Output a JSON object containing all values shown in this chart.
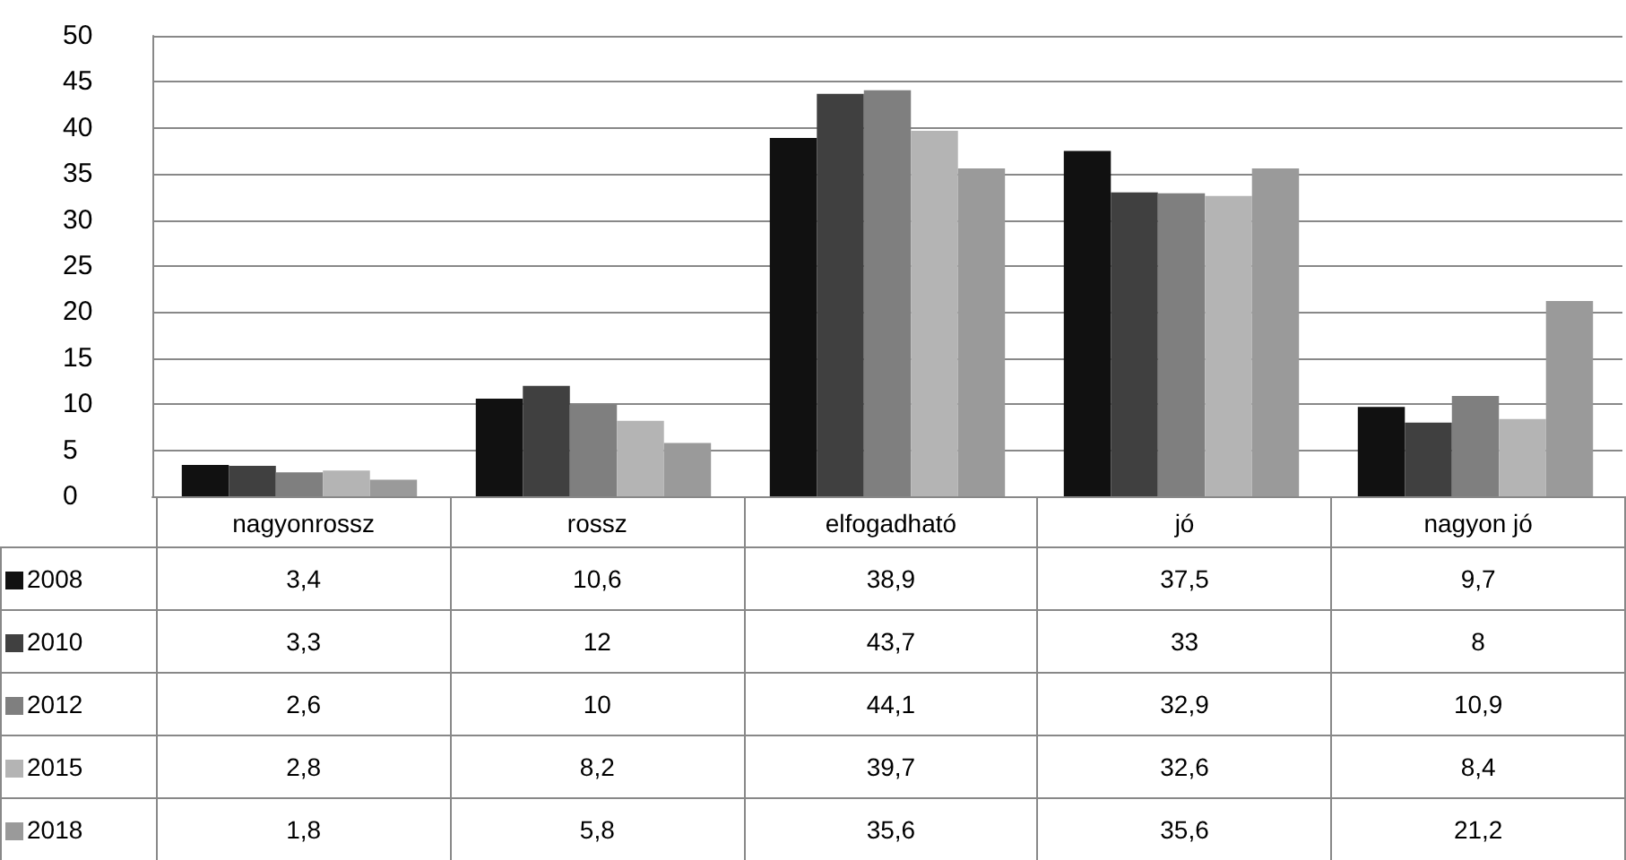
{
  "chart_data": {
    "type": "bar",
    "categories": [
      "nagyonrossz",
      "rossz",
      "elfogadható",
      "jó",
      "nagyon jó"
    ],
    "series": [
      {
        "name": "2008",
        "color": "#111111",
        "values": [
          3.4,
          10.6,
          38.9,
          37.5,
          9.7
        ],
        "value_labels": [
          "3,4",
          "10,6",
          "38,9",
          "37,5",
          "9,7"
        ]
      },
      {
        "name": "2010",
        "color": "#404040",
        "values": [
          3.3,
          12,
          43.7,
          33,
          8
        ],
        "value_labels": [
          "3,3",
          "12",
          "43,7",
          "33",
          "8"
        ]
      },
      {
        "name": "2012",
        "color": "#7f7f7f",
        "values": [
          2.6,
          10,
          44.1,
          32.9,
          10.9
        ],
        "value_labels": [
          "2,6",
          "10",
          "44,1",
          "32,9",
          "10,9"
        ]
      },
      {
        "name": "2015",
        "color": "#b4b4b4",
        "values": [
          2.8,
          8.2,
          39.7,
          32.6,
          8.4
        ],
        "value_labels": [
          "2,8",
          "8,2",
          "39,7",
          "32,6",
          "8,4"
        ]
      },
      {
        "name": "2018",
        "color": "#9a9a9a",
        "values": [
          1.8,
          5.8,
          35.6,
          35.6,
          21.2
        ],
        "value_labels": [
          "1,8",
          "5,8",
          "35,6",
          "35,6",
          "21,2"
        ]
      }
    ],
    "ylim": [
      0,
      50
    ],
    "yticks": [
      0,
      5,
      10,
      15,
      20,
      25,
      30,
      35,
      40,
      45,
      50
    ],
    "grid": "y",
    "legend": "bottom"
  }
}
